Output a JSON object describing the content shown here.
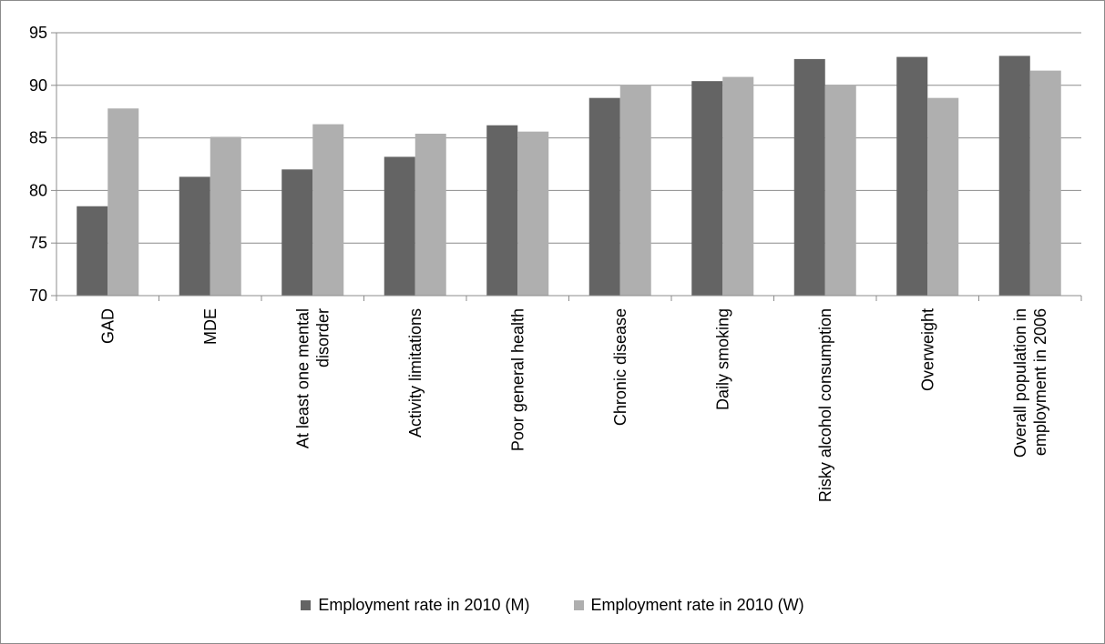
{
  "chart_data": {
    "type": "bar",
    "title": "",
    "xlabel": "",
    "ylabel": "",
    "ylim": [
      70,
      95
    ],
    "yticks": [
      70,
      75,
      80,
      85,
      90,
      95
    ],
    "grid": true,
    "legend_position": "bottom",
    "categories": [
      [
        "GAD"
      ],
      [
        "MDE"
      ],
      [
        "At least one mental",
        "disorder"
      ],
      [
        "Activity limitations"
      ],
      [
        "Poor general health"
      ],
      [
        "Chronic disease"
      ],
      [
        "Daily smoking"
      ],
      [
        "Risky alcohol consumption"
      ],
      [
        "Overweight"
      ],
      [
        "Overall population in",
        "employment in 2006"
      ]
    ],
    "series": [
      {
        "name": "Employment rate in 2010 (M)",
        "color": "#646464",
        "values": [
          78.5,
          81.3,
          82.0,
          83.2,
          86.2,
          88.8,
          90.4,
          92.5,
          92.7,
          92.8
        ]
      },
      {
        "name": "Employment rate in 2010 (W)",
        "color": "#afafaf",
        "values": [
          87.8,
          85.1,
          86.3,
          85.4,
          85.6,
          90.0,
          90.8,
          90.0,
          88.8,
          91.4
        ]
      }
    ]
  }
}
